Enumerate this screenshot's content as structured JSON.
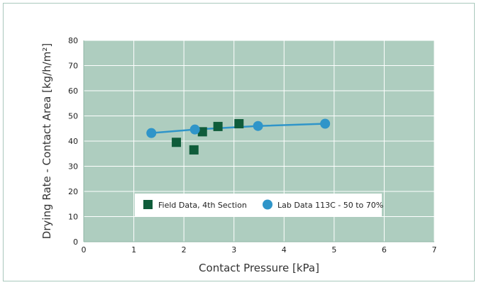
{
  "chart_data": {
    "type": "scatter",
    "title": "",
    "xlabel": "Contact Pressure [kPa]",
    "ylabel": "Drying Rate - Contact Area [kg/h/m²]",
    "xlim": [
      0,
      7
    ],
    "ylim": [
      0,
      80
    ],
    "x_ticks": [
      0,
      1,
      2,
      3,
      4,
      5,
      6,
      7
    ],
    "y_ticks": [
      0,
      10,
      20,
      30,
      40,
      50,
      60,
      70,
      80
    ],
    "x_tick_labels": [
      "0",
      "1",
      "2",
      "3",
      "4",
      "5",
      "6",
      "7"
    ],
    "y_tick_labels": [
      "0",
      "10",
      "20",
      "30",
      "40",
      "50",
      "60",
      "70",
      "80"
    ],
    "grid": true,
    "plot_background": "#aecdbf",
    "grid_color": "#ffffff",
    "legend_placement": "bottom-center",
    "series": [
      {
        "name": "Field Data, 4th Section",
        "marker": "square",
        "color": "#0f5c3a",
        "line": false,
        "points": [
          {
            "x": 1.85,
            "y": 39.5
          },
          {
            "x": 2.2,
            "y": 36.5
          },
          {
            "x": 2.37,
            "y": 43.7
          },
          {
            "x": 2.68,
            "y": 45.8
          },
          {
            "x": 3.1,
            "y": 46.9
          }
        ]
      },
      {
        "name": "Lab Data 113C - 50 to 70%",
        "marker": "circle",
        "color": "#2f95c9",
        "line": true,
        "points": [
          {
            "x": 1.35,
            "y": 43.2
          },
          {
            "x": 2.22,
            "y": 44.6
          },
          {
            "x": 3.48,
            "y": 46.0
          },
          {
            "x": 4.82,
            "y": 46.9
          }
        ]
      }
    ]
  }
}
